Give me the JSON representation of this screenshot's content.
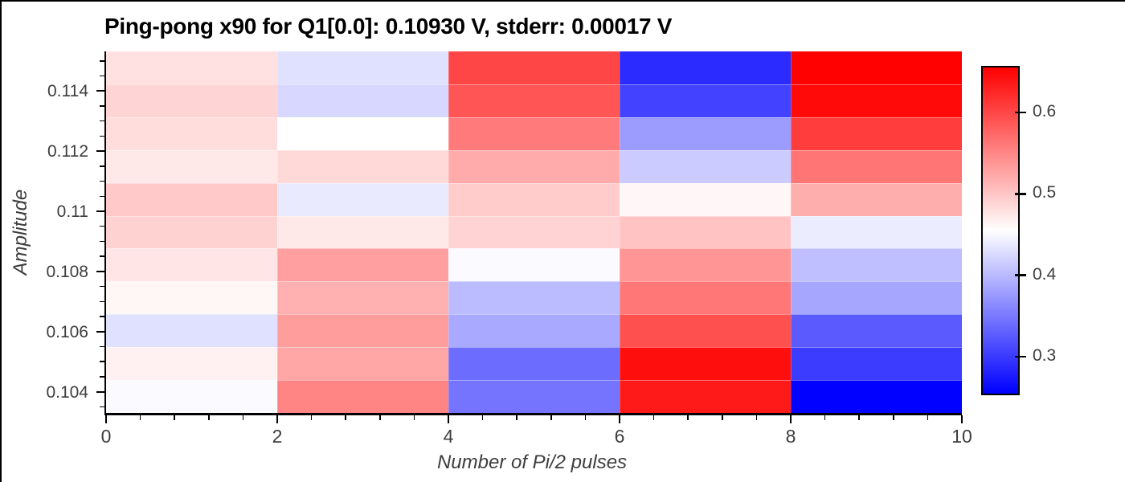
{
  "chart_data": {
    "type": "heatmap",
    "title": "Ping-pong x90 for Q1[0.0]: 0.10930 V, stderr: 0.00017 V",
    "xlabel": "Number of Pi/2 pulses",
    "ylabel": "Amplitude",
    "x_centers": [
      1,
      3,
      5,
      7,
      9
    ],
    "x_range": [
      0,
      10
    ],
    "x_ticks": [
      0,
      2,
      4,
      6,
      8,
      10
    ],
    "x_tick_labels": [
      "0",
      "2",
      "4",
      "6",
      "8",
      "10"
    ],
    "x_minor_step": 0.4,
    "y_ticks": [
      0.104,
      0.106,
      0.108,
      0.11,
      0.112,
      0.114
    ],
    "y_tick_labels": [
      "0.104",
      "0.106",
      "0.108",
      "0.11",
      "0.112",
      "0.114"
    ],
    "y_minor_step": 0.0005,
    "rows": [
      {
        "amplitude": 0.11477,
        "values": [
          0.479,
          0.43,
          0.602,
          0.287,
          0.657
        ]
      },
      {
        "amplitude": 0.11368,
        "values": [
          0.489,
          0.423,
          0.59,
          0.306,
          0.65
        ]
      },
      {
        "amplitude": 0.11258,
        "values": [
          0.482,
          0.455,
          0.561,
          0.376,
          0.609
        ]
      },
      {
        "amplitude": 0.11149,
        "values": [
          0.473,
          0.486,
          0.522,
          0.414,
          0.565
        ]
      },
      {
        "amplitude": 0.1104,
        "values": [
          0.498,
          0.438,
          0.496,
          0.461,
          0.519
        ]
      },
      {
        "amplitude": 0.1093,
        "values": [
          0.491,
          0.473,
          0.49,
          0.503,
          0.44
        ]
      },
      {
        "amplitude": 0.10821,
        "values": [
          0.476,
          0.531,
          0.451,
          0.539,
          0.404
        ]
      },
      {
        "amplitude": 0.10712,
        "values": [
          0.462,
          0.517,
          0.401,
          0.563,
          0.384
        ]
      },
      {
        "amplitude": 0.10602,
        "values": [
          0.43,
          0.534,
          0.387,
          0.594,
          0.324
        ]
      },
      {
        "amplitude": 0.10493,
        "values": [
          0.466,
          0.525,
          0.338,
          0.646,
          0.3
        ]
      },
      {
        "amplitude": 0.10384,
        "values": [
          0.452,
          0.553,
          0.345,
          0.637,
          0.253
        ]
      }
    ],
    "colormap": "bwr",
    "colors": {
      "low": "#0000ff",
      "mid": "#ffffff",
      "high": "#ff0000"
    },
    "vmin": 0.2525,
    "vmax": 0.6575,
    "colorbar_ticks": [
      0.3,
      0.4,
      0.5,
      0.6
    ],
    "colorbar_tick_labels": [
      "0.3",
      "0.4",
      "0.5",
      "0.6"
    ],
    "legend_position": "right-colorbar",
    "grid": false
  }
}
